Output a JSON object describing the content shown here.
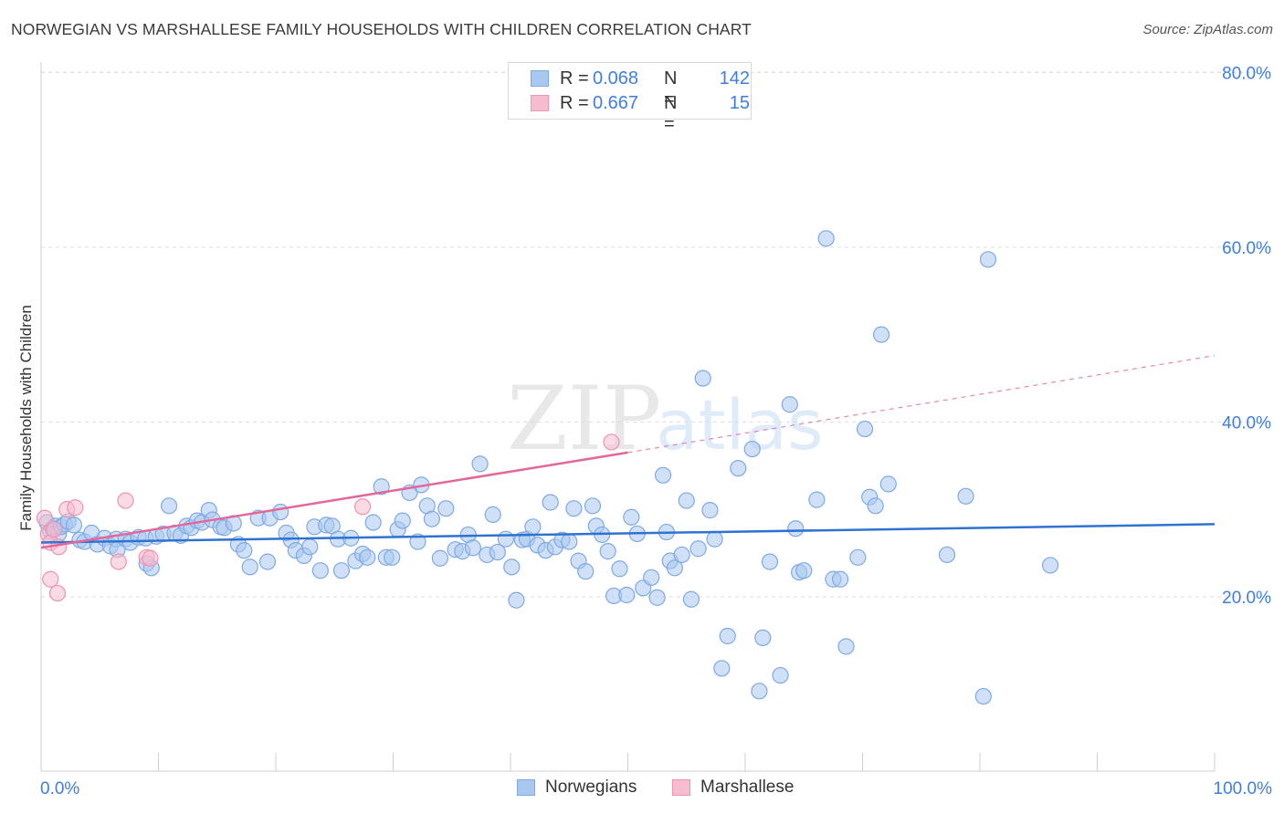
{
  "header": {
    "title": "NORWEGIAN VS MARSHALLESE FAMILY HOUSEHOLDS WITH CHILDREN CORRELATION CHART",
    "source": "Source: ZipAtlas.com"
  },
  "colors": {
    "blue_fill": "#a9c8f0",
    "blue_stroke": "#7fa9e3",
    "blue_line": "#2f73d0",
    "pink_fill": "#f6bcd0",
    "pink_stroke": "#ee93b2",
    "pink_line": "#e2689a",
    "axis_text": "#3f7ee0",
    "grid": "#dddddd"
  },
  "legend": {
    "rows": [
      {
        "r_label": "R =",
        "r_value": "0.068",
        "n_label": "N =",
        "n_value": "142"
      },
      {
        "r_label": "R =",
        "r_value": "0.667",
        "n_label": "N =",
        "n_value": "15"
      }
    ]
  },
  "bottom_legend": {
    "items": [
      "Norwegians",
      "Marshallese"
    ]
  },
  "watermark": {
    "zip": "ZIP",
    "atlas": "atlas"
  },
  "chart_data": {
    "type": "scatter",
    "title": "NORWEGIAN VS MARSHALLESE FAMILY HOUSEHOLDS WITH CHILDREN CORRELATION CHART",
    "xlabel": "",
    "ylabel": "Family Households with Children",
    "xlim": [
      0,
      100
    ],
    "ylim": [
      0,
      84
    ],
    "x_tick_labels": [
      "0.0%",
      "100.0%"
    ],
    "y_ticks": [
      20,
      40,
      60,
      80
    ],
    "y_tick_labels": [
      "20.0%",
      "40.0%",
      "60.0%",
      "80.0%"
    ],
    "grid": true,
    "legend_position": "top-center",
    "series": [
      {
        "name": "Norwegians",
        "r": 0.068,
        "n": 142,
        "trend": {
          "x": [
            0,
            100
          ],
          "y": [
            26.2,
            28.3
          ]
        },
        "points": [
          [
            0.5,
            28.5
          ],
          [
            0.8,
            27.5
          ],
          [
            1.0,
            27.8
          ],
          [
            1.2,
            28.1
          ],
          [
            1.5,
            27.2
          ],
          [
            1.7,
            28.0
          ],
          [
            2.0,
            28.3
          ],
          [
            2.3,
            28.6
          ],
          [
            2.8,
            28.2
          ],
          [
            3.3,
            26.5
          ],
          [
            3.7,
            26.3
          ],
          [
            4.3,
            27.3
          ],
          [
            4.8,
            26.0
          ],
          [
            5.4,
            26.7
          ],
          [
            5.9,
            25.8
          ],
          [
            6.4,
            26.6
          ],
          [
            6.5,
            25.4
          ],
          [
            7.2,
            26.6
          ],
          [
            7.6,
            26.2
          ],
          [
            8.3,
            26.8
          ],
          [
            8.9,
            26.7
          ],
          [
            9.0,
            23.8
          ],
          [
            9.4,
            23.3
          ],
          [
            9.8,
            26.9
          ],
          [
            10.4,
            27.2
          ],
          [
            10.9,
            30.4
          ],
          [
            11.4,
            27.3
          ],
          [
            11.9,
            27.0
          ],
          [
            12.4,
            28.1
          ],
          [
            12.8,
            27.9
          ],
          [
            13.3,
            28.7
          ],
          [
            13.7,
            28.5
          ],
          [
            14.3,
            29.9
          ],
          [
            14.6,
            28.8
          ],
          [
            15.3,
            28.0
          ],
          [
            15.6,
            27.9
          ],
          [
            16.4,
            28.4
          ],
          [
            16.8,
            26.0
          ],
          [
            17.3,
            25.3
          ],
          [
            17.8,
            23.4
          ],
          [
            18.5,
            29.0
          ],
          [
            19.3,
            24.0
          ],
          [
            19.5,
            29.0
          ],
          [
            20.4,
            29.7
          ],
          [
            20.9,
            27.3
          ],
          [
            21.3,
            26.5
          ],
          [
            21.7,
            25.3
          ],
          [
            22.4,
            24.7
          ],
          [
            22.9,
            25.7
          ],
          [
            23.3,
            28.0
          ],
          [
            23.8,
            23.0
          ],
          [
            24.3,
            28.2
          ],
          [
            24.8,
            28.1
          ],
          [
            25.3,
            26.6
          ],
          [
            25.6,
            23.0
          ],
          [
            26.4,
            26.7
          ],
          [
            26.8,
            24.1
          ],
          [
            27.4,
            24.9
          ],
          [
            27.8,
            24.5
          ],
          [
            28.3,
            28.5
          ],
          [
            29.0,
            32.6
          ],
          [
            29.4,
            24.5
          ],
          [
            29.9,
            24.5
          ],
          [
            30.4,
            27.7
          ],
          [
            30.8,
            28.7
          ],
          [
            31.4,
            31.9
          ],
          [
            32.1,
            26.3
          ],
          [
            32.4,
            32.8
          ],
          [
            32.9,
            30.4
          ],
          [
            33.3,
            28.9
          ],
          [
            34.0,
            24.4
          ],
          [
            34.5,
            30.1
          ],
          [
            35.3,
            25.4
          ],
          [
            35.9,
            25.2
          ],
          [
            36.4,
            27.1
          ],
          [
            36.8,
            25.6
          ],
          [
            37.4,
            35.2
          ],
          [
            38.0,
            24.8
          ],
          [
            38.5,
            29.4
          ],
          [
            38.9,
            25.1
          ],
          [
            39.6,
            26.6
          ],
          [
            40.1,
            23.4
          ],
          [
            40.5,
            19.6
          ],
          [
            41.0,
            26.5
          ],
          [
            41.4,
            26.6
          ],
          [
            41.9,
            28.0
          ],
          [
            42.3,
            25.9
          ],
          [
            43.0,
            25.3
          ],
          [
            43.4,
            30.8
          ],
          [
            43.8,
            25.7
          ],
          [
            44.4,
            26.5
          ],
          [
            45.0,
            26.3
          ],
          [
            45.4,
            30.1
          ],
          [
            45.8,
            24.1
          ],
          [
            46.4,
            22.9
          ],
          [
            47.0,
            30.4
          ],
          [
            47.3,
            28.1
          ],
          [
            47.8,
            27.1
          ],
          [
            48.3,
            25.2
          ],
          [
            48.8,
            20.1
          ],
          [
            49.3,
            23.2
          ],
          [
            49.9,
            20.2
          ],
          [
            50.3,
            29.1
          ],
          [
            50.8,
            27.2
          ],
          [
            51.3,
            21.0
          ],
          [
            52.0,
            22.2
          ],
          [
            52.5,
            19.9
          ],
          [
            53.0,
            33.9
          ],
          [
            53.3,
            27.4
          ],
          [
            53.6,
            24.1
          ],
          [
            54.0,
            23.3
          ],
          [
            54.6,
            24.8
          ],
          [
            55.0,
            31.0
          ],
          [
            55.4,
            19.7
          ],
          [
            56.0,
            25.5
          ],
          [
            56.4,
            45.0
          ],
          [
            57.0,
            29.9
          ],
          [
            57.4,
            26.6
          ],
          [
            58.0,
            11.8
          ],
          [
            58.5,
            15.5
          ],
          [
            59.4,
            34.7
          ],
          [
            60.6,
            36.9
          ],
          [
            61.2,
            9.2
          ],
          [
            61.5,
            15.3
          ],
          [
            62.1,
            24.0
          ],
          [
            63.0,
            11.0
          ],
          [
            63.8,
            42.0
          ],
          [
            64.3,
            27.8
          ],
          [
            64.6,
            22.8
          ],
          [
            65.0,
            23.0
          ],
          [
            66.1,
            31.1
          ],
          [
            66.9,
            61.0
          ],
          [
            67.5,
            22.0
          ],
          [
            68.1,
            22.0
          ],
          [
            68.6,
            14.3
          ],
          [
            69.6,
            24.5
          ],
          [
            70.2,
            39.2
          ],
          [
            70.6,
            31.4
          ],
          [
            71.1,
            30.4
          ],
          [
            71.6,
            50.0
          ],
          [
            72.2,
            32.9
          ],
          [
            77.2,
            24.8
          ],
          [
            78.8,
            31.5
          ],
          [
            80.3,
            8.6
          ],
          [
            80.7,
            58.6
          ],
          [
            86.0,
            23.6
          ]
        ]
      },
      {
        "name": "Marshallese",
        "r": 0.667,
        "n": 15,
        "trend": {
          "x": [
            0,
            50
          ],
          "y": [
            25.6,
            36.5
          ]
        },
        "trend_extension": {
          "x": [
            50,
            100
          ],
          "y": [
            36.5,
            47.6
          ]
        },
        "points": [
          [
            0.3,
            29.0
          ],
          [
            0.6,
            27.2
          ],
          [
            0.8,
            26.2
          ],
          [
            1.1,
            27.7
          ],
          [
            1.5,
            25.7
          ],
          [
            0.8,
            22.0
          ],
          [
            1.4,
            20.4
          ],
          [
            2.2,
            30.0
          ],
          [
            2.9,
            30.2
          ],
          [
            6.6,
            24.0
          ],
          [
            7.2,
            31.0
          ],
          [
            9.0,
            24.5
          ],
          [
            9.3,
            24.4
          ],
          [
            27.4,
            30.3
          ],
          [
            48.6,
            37.7
          ]
        ]
      }
    ]
  }
}
